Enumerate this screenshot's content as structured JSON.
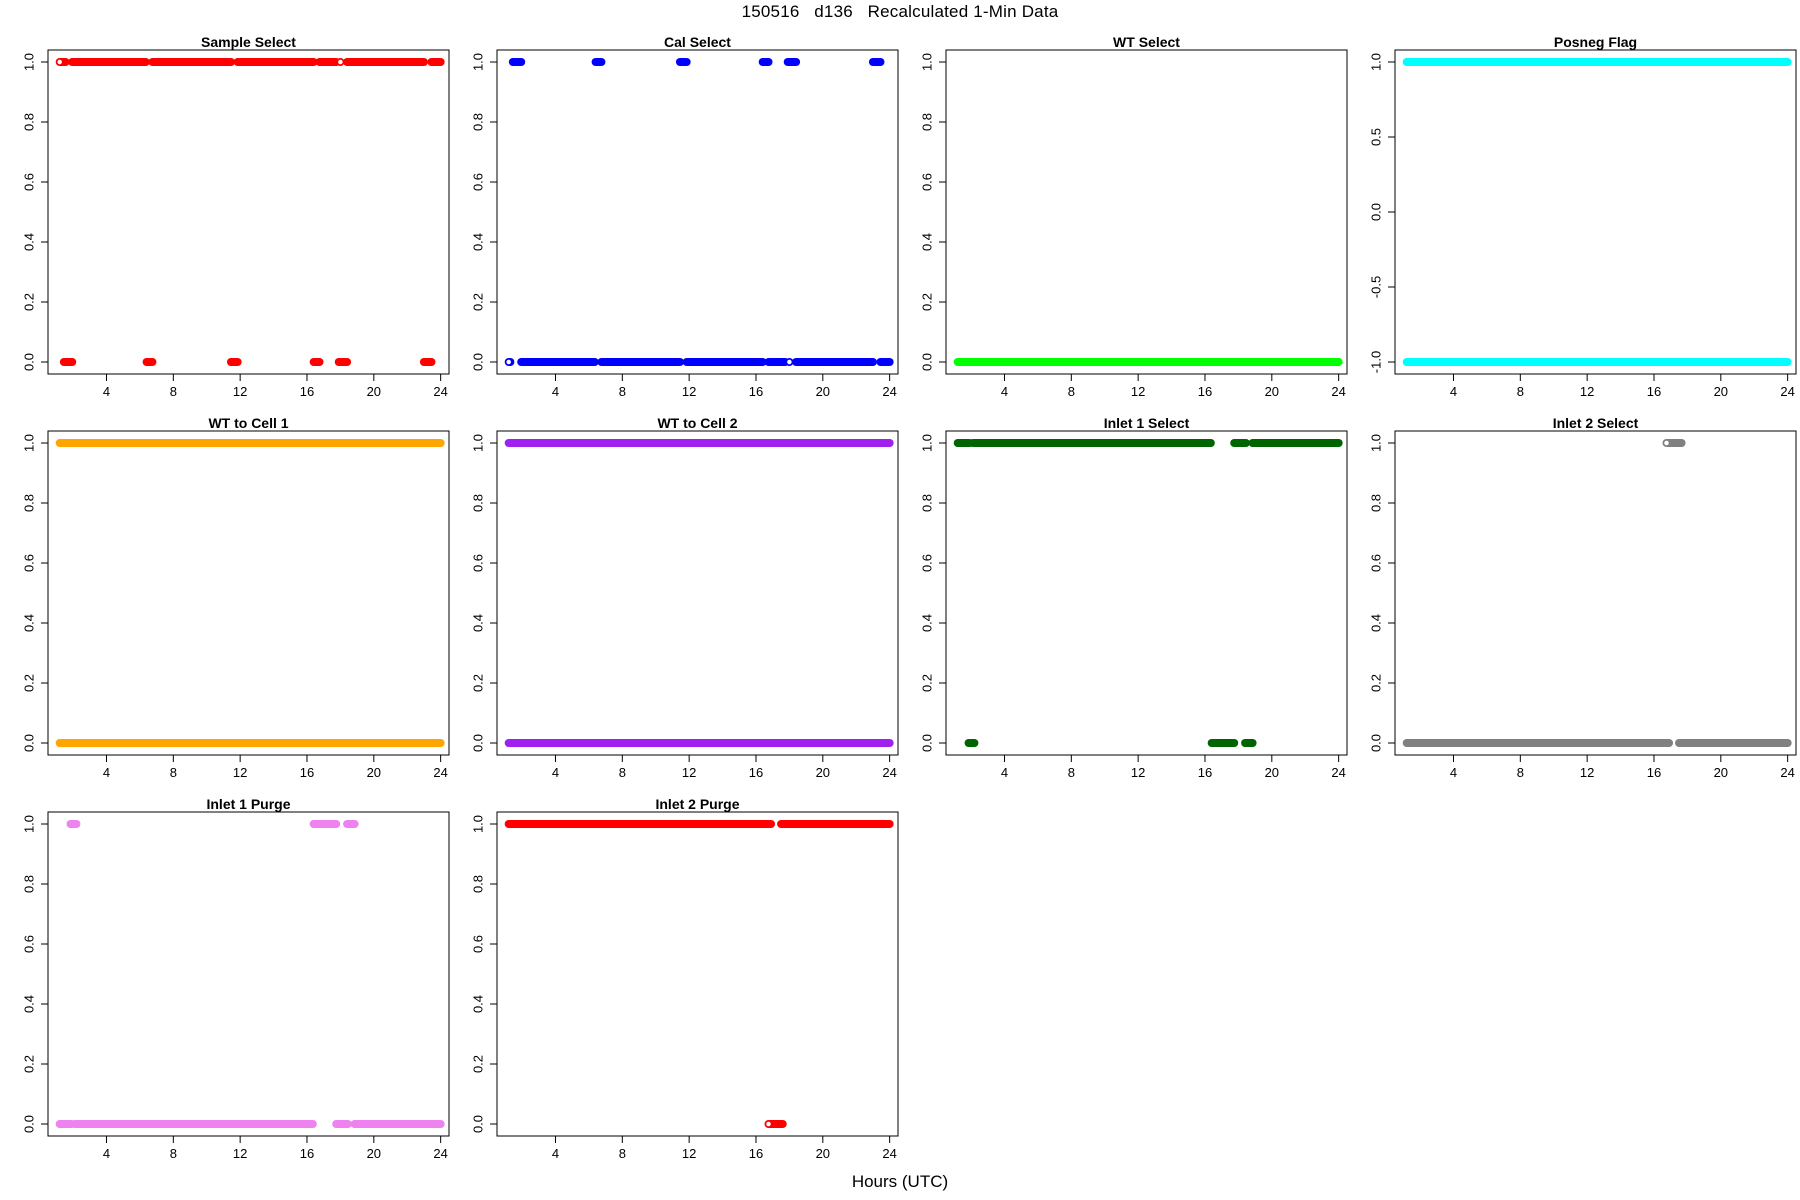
{
  "page": {
    "title": "150516   d136   Recalculated 1-Min Data",
    "xlabel": "Hours (UTC)"
  },
  "chart_data": [
    {
      "type": "scatter",
      "title": "Sample Select",
      "color": "#ff0000",
      "xlim": [
        0.5,
        24.5
      ],
      "ylim": [
        0,
        1
      ],
      "xticks": [
        4,
        8,
        12,
        16,
        20,
        24
      ],
      "yticks": [
        0.0,
        0.2,
        0.4,
        0.6,
        0.8,
        1.0
      ],
      "yticklabels": [
        "0.0",
        "0.2",
        "0.4",
        "0.6",
        "0.8",
        "1.0"
      ],
      "segments": [
        {
          "y": 1,
          "x": [
            1.2,
            1.55
          ],
          "open_start": true
        },
        {
          "y": 1,
          "x": [
            1.95,
            6.35
          ]
        },
        {
          "y": 1,
          "x": [
            6.75,
            11.45
          ]
        },
        {
          "y": 1,
          "x": [
            11.85,
            16.4
          ]
        },
        {
          "y": 1,
          "x": [
            16.75,
            17.75
          ]
        },
        {
          "y": 1,
          "x": [
            18.4,
            23.0
          ]
        },
        {
          "y": 1,
          "x": [
            23.45,
            24.0
          ]
        },
        {
          "y": 1,
          "x": [
            18.0,
            18.0
          ],
          "open_start": true
        },
        {
          "y": 0,
          "x": [
            1.45,
            1.95
          ]
        },
        {
          "y": 0,
          "x": [
            6.4,
            6.75
          ]
        },
        {
          "y": 0,
          "x": [
            11.45,
            11.85
          ]
        },
        {
          "y": 0,
          "x": [
            16.4,
            16.75
          ]
        },
        {
          "y": 0,
          "x": [
            17.9,
            18.4
          ]
        },
        {
          "y": 0,
          "x": [
            23.0,
            23.45
          ]
        }
      ]
    },
    {
      "type": "scatter",
      "title": "Cal Select",
      "color": "#0000ff",
      "xlim": [
        0.5,
        24.5
      ],
      "ylim": [
        0,
        1
      ],
      "xticks": [
        4,
        8,
        12,
        16,
        20,
        24
      ],
      "yticks": [
        0.0,
        0.2,
        0.4,
        0.6,
        0.8,
        1.0
      ],
      "yticklabels": [
        "0.0",
        "0.2",
        "0.4",
        "0.6",
        "0.8",
        "1.0"
      ],
      "segments": [
        {
          "y": 1,
          "x": [
            1.45,
            1.95
          ]
        },
        {
          "y": 1,
          "x": [
            6.4,
            6.75
          ]
        },
        {
          "y": 1,
          "x": [
            11.45,
            11.85
          ]
        },
        {
          "y": 1,
          "x": [
            16.4,
            16.75
          ]
        },
        {
          "y": 1,
          "x": [
            17.9,
            18.4
          ]
        },
        {
          "y": 1,
          "x": [
            23.0,
            23.45
          ]
        },
        {
          "y": 0,
          "x": [
            1.2,
            1.3
          ],
          "open_start": true
        },
        {
          "y": 0,
          "x": [
            1.95,
            6.35
          ]
        },
        {
          "y": 0,
          "x": [
            6.75,
            11.45
          ]
        },
        {
          "y": 0,
          "x": [
            11.85,
            16.4
          ]
        },
        {
          "y": 0,
          "x": [
            16.75,
            17.75
          ]
        },
        {
          "y": 0,
          "x": [
            18.0,
            18.0
          ],
          "open_start": true
        },
        {
          "y": 0,
          "x": [
            18.4,
            23.0
          ]
        },
        {
          "y": 0,
          "x": [
            23.45,
            24.0
          ]
        }
      ]
    },
    {
      "type": "scatter",
      "title": "WT Select",
      "color": "#00ff00",
      "xlim": [
        0.5,
        24.5
      ],
      "ylim": [
        0,
        1
      ],
      "xticks": [
        4,
        8,
        12,
        16,
        20,
        24
      ],
      "yticks": [
        0.0,
        0.2,
        0.4,
        0.6,
        0.8,
        1.0
      ],
      "yticklabels": [
        "0.0",
        "0.2",
        "0.4",
        "0.6",
        "0.8",
        "1.0"
      ],
      "segments": [
        {
          "y": 0,
          "x": [
            1.2,
            17.8
          ]
        },
        {
          "y": 0,
          "x": [
            17.85,
            24.0
          ]
        }
      ]
    },
    {
      "type": "scatter",
      "title": "Posneg Flag",
      "color": "#00ffff",
      "xlim": [
        0.5,
        24.5
      ],
      "ylim": [
        -1,
        1
      ],
      "xticks": [
        4,
        8,
        12,
        16,
        20,
        24
      ],
      "yticks": [
        -1.0,
        -0.5,
        0.0,
        0.5,
        1.0
      ],
      "yticklabels": [
        "-1.0",
        "-0.5",
        "0.0",
        "0.5",
        "1.0"
      ],
      "segments": [
        {
          "y": 1,
          "x": [
            1.2,
            17.8
          ]
        },
        {
          "y": 1,
          "x": [
            17.85,
            24.0
          ]
        },
        {
          "y": -1,
          "x": [
            1.2,
            17.8
          ]
        },
        {
          "y": -1,
          "x": [
            17.85,
            24.0
          ]
        }
      ]
    },
    {
      "type": "scatter",
      "title": "WT to Cell 1",
      "color": "#ffa500",
      "xlim": [
        0.5,
        24.5
      ],
      "ylim": [
        0,
        1
      ],
      "xticks": [
        4,
        8,
        12,
        16,
        20,
        24
      ],
      "yticks": [
        0.0,
        0.2,
        0.4,
        0.6,
        0.8,
        1.0
      ],
      "yticklabels": [
        "0.0",
        "0.2",
        "0.4",
        "0.6",
        "0.8",
        "1.0"
      ],
      "segments": [
        {
          "y": 1,
          "x": [
            1.2,
            17.8
          ]
        },
        {
          "y": 1,
          "x": [
            17.85,
            24.0
          ]
        },
        {
          "y": 0,
          "x": [
            1.2,
            17.8
          ]
        },
        {
          "y": 0,
          "x": [
            17.85,
            24.0
          ]
        }
      ]
    },
    {
      "type": "scatter",
      "title": "WT to Cell 2",
      "color": "#a020f0",
      "xlim": [
        0.5,
        24.5
      ],
      "ylim": [
        0,
        1
      ],
      "xticks": [
        4,
        8,
        12,
        16,
        20,
        24
      ],
      "yticks": [
        0.0,
        0.2,
        0.4,
        0.6,
        0.8,
        1.0
      ],
      "yticklabels": [
        "0.0",
        "0.2",
        "0.4",
        "0.6",
        "0.8",
        "1.0"
      ],
      "segments": [
        {
          "y": 1,
          "x": [
            1.2,
            17.8
          ]
        },
        {
          "y": 1,
          "x": [
            17.85,
            24.0
          ]
        },
        {
          "y": 0,
          "x": [
            1.2,
            17.8
          ]
        },
        {
          "y": 0,
          "x": [
            17.85,
            24.0
          ]
        }
      ]
    },
    {
      "type": "scatter",
      "title": "Inlet 1 Select",
      "color": "#006400",
      "xlim": [
        0.5,
        24.5
      ],
      "ylim": [
        0,
        1
      ],
      "xticks": [
        4,
        8,
        12,
        16,
        20,
        24
      ],
      "yticks": [
        0.0,
        0.2,
        0.4,
        0.6,
        0.8,
        1.0
      ],
      "yticklabels": [
        "0.0",
        "0.2",
        "0.4",
        "0.6",
        "0.8",
        "1.0"
      ],
      "segments": [
        {
          "y": 1,
          "x": [
            1.2,
            1.9
          ]
        },
        {
          "y": 1,
          "x": [
            2.1,
            16.35
          ]
        },
        {
          "y": 1,
          "x": [
            17.75,
            18.45
          ]
        },
        {
          "y": 1,
          "x": [
            18.85,
            24.0
          ]
        },
        {
          "y": 0,
          "x": [
            1.85,
            2.2
          ]
        },
        {
          "y": 0,
          "x": [
            16.4,
            17.75
          ]
        },
        {
          "y": 0,
          "x": [
            18.4,
            18.85
          ]
        }
      ]
    },
    {
      "type": "scatter",
      "title": "Inlet 2 Select",
      "color": "#808080",
      "xlim": [
        0.5,
        24.5
      ],
      "ylim": [
        0,
        1
      ],
      "xticks": [
        4,
        8,
        12,
        16,
        20,
        24
      ],
      "yticks": [
        0.0,
        0.2,
        0.4,
        0.6,
        0.8,
        1.0
      ],
      "yticklabels": [
        "0.0",
        "0.2",
        "0.4",
        "0.6",
        "0.8",
        "1.0"
      ],
      "segments": [
        {
          "y": 1,
          "x": [
            16.75,
            17.65
          ],
          "open_start": true
        },
        {
          "y": 0,
          "x": [
            1.2,
            16.9
          ]
        },
        {
          "y": 0,
          "x": [
            17.5,
            24.0
          ]
        }
      ]
    },
    {
      "type": "scatter",
      "title": "Inlet 1 Purge",
      "color": "#ee82ee",
      "xlim": [
        0.5,
        24.5
      ],
      "ylim": [
        0,
        1
      ],
      "xticks": [
        4,
        8,
        12,
        16,
        20,
        24
      ],
      "yticks": [
        0.0,
        0.2,
        0.4,
        0.6,
        0.8,
        1.0
      ],
      "yticklabels": [
        "0.0",
        "0.2",
        "0.4",
        "0.6",
        "0.8",
        "1.0"
      ],
      "segments": [
        {
          "y": 1,
          "x": [
            1.85,
            2.2
          ]
        },
        {
          "y": 1,
          "x": [
            16.4,
            17.75
          ]
        },
        {
          "y": 1,
          "x": [
            18.4,
            18.85
          ]
        },
        {
          "y": 0,
          "x": [
            1.2,
            1.9
          ]
        },
        {
          "y": 0,
          "x": [
            2.1,
            16.35
          ]
        },
        {
          "y": 0,
          "x": [
            17.75,
            18.45
          ]
        },
        {
          "y": 0,
          "x": [
            18.85,
            24.0
          ]
        }
      ]
    },
    {
      "type": "scatter",
      "title": "Inlet 2 Purge",
      "color": "#ff0000",
      "xlim": [
        0.5,
        24.5
      ],
      "ylim": [
        0,
        1
      ],
      "xticks": [
        4,
        8,
        12,
        16,
        20,
        24
      ],
      "yticks": [
        0.0,
        0.2,
        0.4,
        0.6,
        0.8,
        1.0
      ],
      "yticklabels": [
        "0.0",
        "0.2",
        "0.4",
        "0.6",
        "0.8",
        "1.0"
      ],
      "segments": [
        {
          "y": 1,
          "x": [
            1.2,
            16.9
          ]
        },
        {
          "y": 1,
          "x": [
            17.5,
            24.0
          ]
        },
        {
          "y": 0,
          "x": [
            16.75,
            17.6
          ],
          "open_start": true
        }
      ]
    }
  ]
}
